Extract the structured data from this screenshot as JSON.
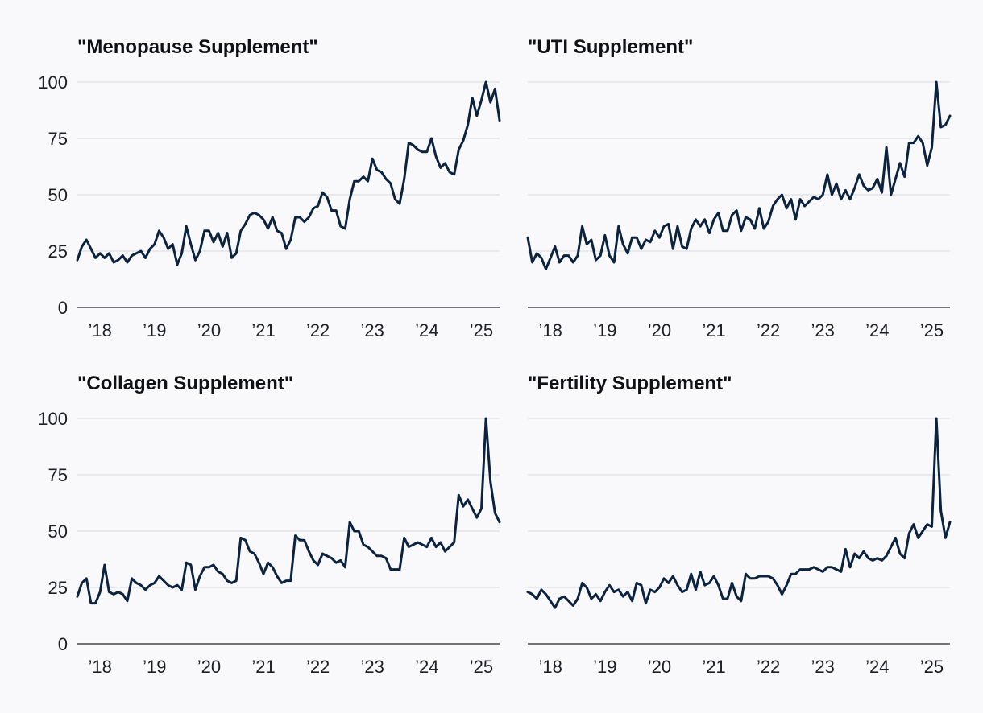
{
  "chart_data": [
    {
      "type": "line",
      "title": "\"Menopause Supplement\"",
      "xlabel": "",
      "ylabel": "",
      "ylim": [
        0,
        100
      ],
      "yticks": [
        0,
        25,
        50,
        75,
        100
      ],
      "xticks": [
        {
          "year": 2018,
          "label": "’18"
        },
        {
          "year": 2019,
          "label": "’19"
        },
        {
          "year": 2020,
          "label": "’20"
        },
        {
          "year": 2021,
          "label": "’21"
        },
        {
          "year": 2022,
          "label": "’22"
        },
        {
          "year": 2023,
          "label": "’23"
        },
        {
          "year": 2024,
          "label": "’24"
        },
        {
          "year": 2025,
          "label": "’25"
        }
      ],
      "x_start": "2017-08",
      "x_end": "2025-05",
      "series": [
        {
          "name": "Menopause Supplement",
          "color": "#0c2340",
          "values": [
            21,
            27,
            30,
            26,
            22,
            24,
            22,
            24,
            20,
            21,
            23,
            20,
            23,
            24,
            25,
            22,
            26,
            28,
            34,
            31,
            26,
            28,
            19,
            24,
            36,
            28,
            21,
            25,
            34,
            34,
            29,
            33,
            27,
            33,
            22,
            24,
            34,
            37,
            41,
            42,
            41,
            39,
            35,
            40,
            34,
            33,
            26,
            30,
            40,
            40,
            38,
            40,
            44,
            45,
            51,
            49,
            43,
            43,
            36,
            35,
            48,
            56,
            56,
            58,
            56,
            66,
            61,
            60,
            57,
            55,
            48,
            46,
            57,
            73,
            72,
            70,
            69,
            69,
            75,
            67,
            62,
            64,
            60,
            59,
            70,
            74,
            81,
            93,
            85,
            92,
            100,
            91,
            97,
            83
          ]
        }
      ]
    },
    {
      "type": "line",
      "title": "\"UTI Supplement\"",
      "xlabel": "",
      "ylabel": "",
      "ylim": [
        0,
        100
      ],
      "yticks": [
        0,
        25,
        50,
        75,
        100
      ],
      "xticks": [
        {
          "year": 2018,
          "label": "’18"
        },
        {
          "year": 2019,
          "label": "’19"
        },
        {
          "year": 2020,
          "label": "’20"
        },
        {
          "year": 2021,
          "label": "’21"
        },
        {
          "year": 2022,
          "label": "’22"
        },
        {
          "year": 2023,
          "label": "’23"
        },
        {
          "year": 2024,
          "label": "’24"
        },
        {
          "year": 2025,
          "label": "’25"
        }
      ],
      "x_start": "2017-08",
      "x_end": "2025-05",
      "series": [
        {
          "name": "UTI Supplement",
          "color": "#0c2340",
          "values": [
            31,
            20,
            24,
            22,
            17,
            22,
            27,
            20,
            23,
            23,
            20,
            23,
            36,
            28,
            30,
            21,
            23,
            32,
            23,
            20,
            36,
            28,
            24,
            31,
            31,
            26,
            30,
            29,
            34,
            31,
            36,
            37,
            26,
            36,
            27,
            26,
            35,
            39,
            36,
            39,
            33,
            39,
            42,
            34,
            34,
            41,
            43,
            34,
            40,
            39,
            35,
            44,
            35,
            38,
            45,
            48,
            50,
            44,
            48,
            39,
            48,
            45,
            47,
            49,
            48,
            50,
            59,
            50,
            55,
            48,
            52,
            48,
            53,
            59,
            54,
            52,
            53,
            57,
            51,
            71,
            50,
            57,
            64,
            58,
            73,
            73,
            76,
            73,
            63,
            71,
            100,
            80,
            81,
            85
          ]
        }
      ]
    },
    {
      "type": "line",
      "title": "\"Collagen Supplement\"",
      "xlabel": "",
      "ylabel": "",
      "ylim": [
        0,
        100
      ],
      "yticks": [
        0,
        25,
        50,
        75,
        100
      ],
      "xticks": [
        {
          "year": 2018,
          "label": "’18"
        },
        {
          "year": 2019,
          "label": "’19"
        },
        {
          "year": 2020,
          "label": "’20"
        },
        {
          "year": 2021,
          "label": "’21"
        },
        {
          "year": 2022,
          "label": "’22"
        },
        {
          "year": 2023,
          "label": "’23"
        },
        {
          "year": 2024,
          "label": "’24"
        },
        {
          "year": 2025,
          "label": "’25"
        }
      ],
      "x_start": "2017-08",
      "x_end": "2025-05",
      "series": [
        {
          "name": "Collagen Supplement",
          "color": "#0c2340",
          "values": [
            21,
            27,
            29,
            18,
            18,
            23,
            35,
            23,
            22,
            23,
            22,
            19,
            29,
            27,
            26,
            24,
            26,
            27,
            30,
            28,
            26,
            25,
            26,
            24,
            36,
            35,
            24,
            30,
            34,
            34,
            35,
            32,
            31,
            28,
            27,
            28,
            47,
            46,
            41,
            40,
            36,
            31,
            36,
            34,
            30,
            27,
            28,
            28,
            48,
            46,
            46,
            41,
            37,
            35,
            40,
            39,
            38,
            36,
            37,
            34,
            54,
            50,
            50,
            44,
            43,
            41,
            39,
            39,
            38,
            33,
            33,
            33,
            47,
            43,
            44,
            45,
            44,
            43,
            47,
            43,
            45,
            41,
            43,
            45,
            66,
            61,
            64,
            60,
            56,
            60,
            100,
            72,
            58,
            54
          ]
        }
      ]
    },
    {
      "type": "line",
      "title": "\"Fertility Supplement\"",
      "xlabel": "",
      "ylabel": "",
      "ylim": [
        0,
        100
      ],
      "yticks": [
        0,
        25,
        50,
        75,
        100
      ],
      "xticks": [
        {
          "year": 2018,
          "label": "’18"
        },
        {
          "year": 2019,
          "label": "’19"
        },
        {
          "year": 2020,
          "label": "’20"
        },
        {
          "year": 2021,
          "label": "’21"
        },
        {
          "year": 2022,
          "label": "’22"
        },
        {
          "year": 2023,
          "label": "’23"
        },
        {
          "year": 2024,
          "label": "’24"
        },
        {
          "year": 2025,
          "label": "’25"
        }
      ],
      "x_start": "2017-08",
      "x_end": "2025-05",
      "series": [
        {
          "name": "Fertility Supplement",
          "color": "#0c2340",
          "values": [
            23,
            22,
            20,
            24,
            22,
            19,
            16,
            20,
            21,
            19,
            17,
            20,
            27,
            25,
            20,
            22,
            19,
            23,
            26,
            23,
            24,
            21,
            23,
            19,
            27,
            26,
            18,
            24,
            23,
            25,
            29,
            27,
            30,
            26,
            23,
            24,
            31,
            24,
            32,
            26,
            27,
            30,
            26,
            20,
            20,
            27,
            21,
            19,
            31,
            29,
            29,
            30,
            30,
            30,
            29,
            26,
            22,
            26,
            31,
            31,
            33,
            33,
            33,
            34,
            33,
            32,
            34,
            34,
            33,
            32,
            42,
            34,
            40,
            38,
            41,
            38,
            37,
            38,
            37,
            39,
            43,
            47,
            40,
            38,
            49,
            53,
            47,
            50,
            53,
            52,
            100,
            59,
            47,
            54
          ]
        }
      ]
    }
  ]
}
